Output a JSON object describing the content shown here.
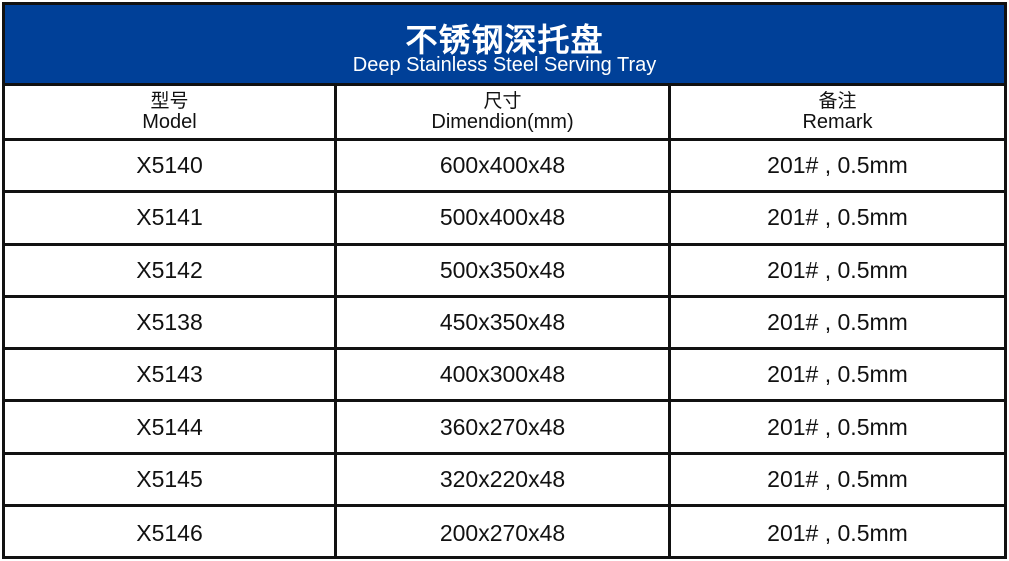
{
  "title": {
    "cn": "不锈钢深托盘",
    "en": "Deep Stainless Steel Serving Tray"
  },
  "colors": {
    "banner": "#004098"
  },
  "headers": [
    {
      "cn": "型号",
      "en": "Model"
    },
    {
      "cn": "尺寸",
      "en": "Dimendion(mm)"
    },
    {
      "cn": "备注",
      "en": "Remark"
    }
  ],
  "rows": [
    {
      "model": "X5140",
      "size": "600x400x48",
      "remark": "201# , 0.5mm"
    },
    {
      "model": "X5141",
      "size": "500x400x48",
      "remark": "201# , 0.5mm"
    },
    {
      "model": "X5142",
      "size": "500x350x48",
      "remark": "201# , 0.5mm"
    },
    {
      "model": "X5138",
      "size": "450x350x48",
      "remark": "201# , 0.5mm"
    },
    {
      "model": "X5143",
      "size": "400x300x48",
      "remark": "201# , 0.5mm"
    },
    {
      "model": "X5144",
      "size": "360x270x48",
      "remark": "201# , 0.5mm"
    },
    {
      "model": "X5145",
      "size": "320x220x48",
      "remark": "201# , 0.5mm"
    },
    {
      "model": "X5146",
      "size": "200x270x48",
      "remark": "201# , 0.5mm"
    }
  ]
}
